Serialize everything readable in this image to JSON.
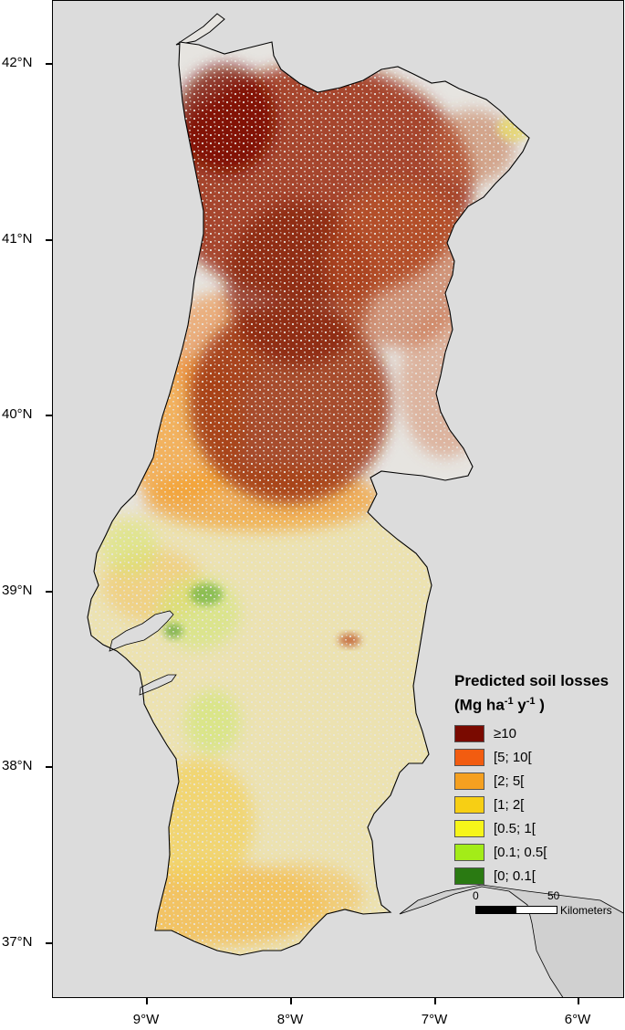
{
  "axes": {
    "lat_labels": [
      "42°N",
      "41°N",
      "40°N",
      "39°N",
      "38°N",
      "37°N"
    ],
    "lon_labels": [
      "9°W",
      "8°W",
      "7°W",
      "6°W"
    ]
  },
  "legend": {
    "title_line1": "Predicted soil losses",
    "title_unit_prefix": "(Mg ha",
    "title_exp1": "-1",
    "title_mid": "y",
    "title_exp2": "-1",
    "title_suffix": ")",
    "classes": [
      {
        "label": "≥10",
        "color": "#7a0a00"
      },
      {
        "label": "[5; 10[",
        "color": "#f25c10"
      },
      {
        "label": "[2; 5[",
        "color": "#f5a020"
      },
      {
        "label": "[1; 2[",
        "color": "#f7cf14"
      },
      {
        "label": "[0.5; 1[",
        "color": "#f6f51a"
      },
      {
        "label": "[0.1; 0.5[",
        "color": "#a3ec18"
      },
      {
        "label": "[0; 0.1[",
        "color": "#2a7a12"
      }
    ]
  },
  "scale": {
    "start_label": "0",
    "end_label": "50",
    "unit_label": "Kilometers"
  },
  "colors": {
    "sea": "#dcdcdc",
    "land_bg": "#e6e4e0",
    "border": "#000000"
  }
}
